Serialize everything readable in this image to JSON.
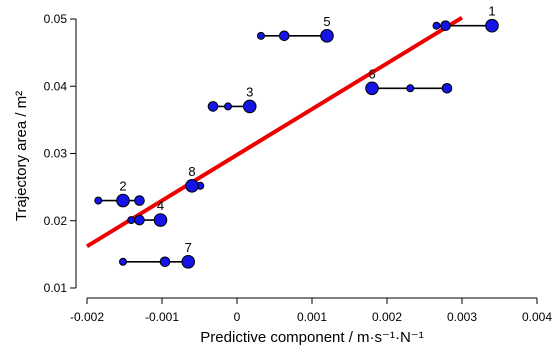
{
  "chart_data": {
    "type": "scatter",
    "xlabel": "Predictive component / m·s⁻¹·N⁻¹",
    "ylabel": "Trajectory area / m²",
    "xlim": [
      -0.002,
      0.004
    ],
    "ylim": [
      0.01,
      0.05
    ],
    "x_ticks": [
      "-0.002",
      "-0.001",
      "0",
      "0.001",
      "0.002",
      "0.003",
      "0.004"
    ],
    "x_tick_values": [
      -0.002,
      -0.001,
      0,
      0.001,
      0.002,
      0.003,
      0.004
    ],
    "y_ticks": [
      "0.01",
      "0.02",
      "0.03",
      "0.04",
      "0.05"
    ],
    "y_tick_values": [
      0.01,
      0.02,
      0.03,
      0.04,
      0.05
    ],
    "grid": false,
    "point_color": "#1414e6",
    "fit_color": "#ee0000",
    "fit_line": {
      "x": [
        -0.002,
        0.003
      ],
      "y": [
        0.0162,
        0.0502
      ]
    },
    "groups": [
      {
        "label": "1",
        "y": 0.049,
        "x_small": 0.00266,
        "x_medium": 0.00278,
        "x_large": 0.0034
      },
      {
        "label": "2",
        "y": 0.023,
        "x_small": -0.00185,
        "x_medium": -0.0013,
        "x_large": -0.00152
      },
      {
        "label": "3",
        "y": 0.037,
        "x_small": -0.00012,
        "x_medium": -0.00032,
        "x_large": 0.00017
      },
      {
        "label": "4",
        "y": 0.0201,
        "x_small": -0.00141,
        "x_medium": -0.0013,
        "x_large": -0.00102
      },
      {
        "label": "5",
        "y": 0.0475,
        "x_small": 0.00032,
        "x_medium": 0.00063,
        "x_large": 0.0012
      },
      {
        "label": "6",
        "y": 0.0397,
        "x_small": 0.00231,
        "x_medium": 0.0028,
        "x_large": 0.0018
      },
      {
        "label": "7",
        "y": 0.0139,
        "x_small": -0.00152,
        "x_medium": -0.00096,
        "x_large": -0.00065
      },
      {
        "label": "8",
        "y": 0.0252,
        "x_small": -0.00049,
        "x_medium": -0.0006,
        "x_large": -0.0006
      }
    ]
  }
}
